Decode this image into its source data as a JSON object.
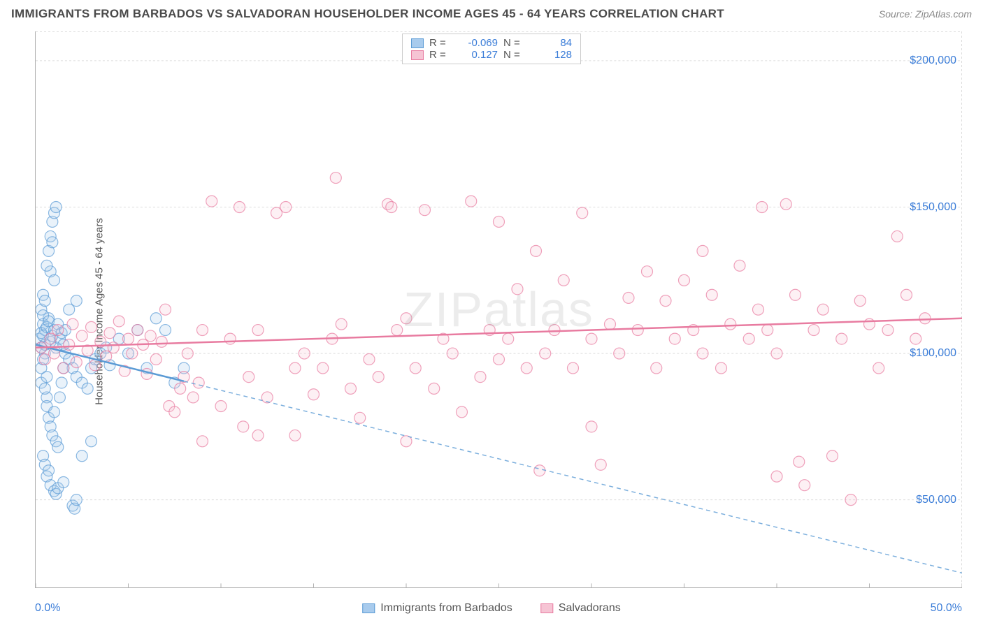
{
  "title": "IMMIGRANTS FROM BARBADOS VS SALVADORAN HOUSEHOLDER INCOME AGES 45 - 64 YEARS CORRELATION CHART",
  "source": "Source: ZipAtlas.com",
  "watermark": "ZIPatlas",
  "ylabel": "Householder Income Ages 45 - 64 years",
  "chart": {
    "type": "scatter",
    "background_color": "#ffffff",
    "grid_color": "#dcdcdc",
    "axis_color": "#b0b0b0",
    "xlim": [
      0,
      50
    ],
    "ylim": [
      20000,
      210000
    ],
    "xticks": [
      0,
      5,
      10,
      15,
      20,
      25,
      30,
      35,
      40,
      45,
      50
    ],
    "xticklabels_shown": {
      "0": "0.0%",
      "50": "50.0%"
    },
    "yticks": [
      50000,
      100000,
      150000,
      200000
    ],
    "yticklabels": [
      "$50,000",
      "$100,000",
      "$150,000",
      "$200,000"
    ],
    "label_fontsize": 15,
    "tick_fontsize": 16,
    "tick_color": "#3b7dd8",
    "marker_radius": 8,
    "marker_fill_opacity": 0.25,
    "marker_stroke_width": 1.2,
    "series": [
      {
        "name": "Immigrants from Barbados",
        "color": "#5b9bd5",
        "fill": "#a8cbed",
        "R": "-0.069",
        "N": "84",
        "trend": {
          "x1": 0,
          "y1": 103000,
          "x2": 50,
          "y2": 25000,
          "solid_until_x": 8,
          "stroke_width": 2.5
        },
        "points": [
          [
            0.2,
            105000
          ],
          [
            0.3,
            95000
          ],
          [
            0.4,
            110000
          ],
          [
            0.3,
            90000
          ],
          [
            0.5,
            100000
          ],
          [
            0.4,
            120000
          ],
          [
            0.6,
            85000
          ],
          [
            0.3,
            115000
          ],
          [
            0.5,
            108000
          ],
          [
            0.4,
            98000
          ],
          [
            0.7,
            112000
          ],
          [
            0.3,
            102000
          ],
          [
            0.5,
            118000
          ],
          [
            0.6,
            92000
          ],
          [
            0.4,
            106000
          ],
          [
            0.8,
            140000
          ],
          [
            0.9,
            145000
          ],
          [
            1.0,
            148000
          ],
          [
            1.1,
            150000
          ],
          [
            0.7,
            135000
          ],
          [
            0.8,
            128000
          ],
          [
            0.6,
            130000
          ],
          [
            0.9,
            138000
          ],
          [
            1.0,
            125000
          ],
          [
            0.5,
            88000
          ],
          [
            0.6,
            82000
          ],
          [
            0.7,
            78000
          ],
          [
            0.8,
            75000
          ],
          [
            0.9,
            72000
          ],
          [
            1.0,
            80000
          ],
          [
            1.1,
            70000
          ],
          [
            1.2,
            68000
          ],
          [
            1.3,
            85000
          ],
          [
            1.4,
            90000
          ],
          [
            1.5,
            95000
          ],
          [
            1.6,
            100000
          ],
          [
            0.4,
            65000
          ],
          [
            0.5,
            62000
          ],
          [
            0.6,
            58000
          ],
          [
            0.7,
            60000
          ],
          [
            0.8,
            55000
          ],
          [
            1.0,
            53000
          ],
          [
            1.1,
            52000
          ],
          [
            1.2,
            54000
          ],
          [
            1.5,
            56000
          ],
          [
            2.0,
            48000
          ],
          [
            2.1,
            47000
          ],
          [
            2.2,
            50000
          ],
          [
            0.3,
            107000
          ],
          [
            0.4,
            113000
          ],
          [
            0.5,
            103000
          ],
          [
            0.6,
            109000
          ],
          [
            0.7,
            111000
          ],
          [
            0.8,
            104000
          ],
          [
            0.9,
            106000
          ],
          [
            1.0,
            108000
          ],
          [
            1.1,
            102000
          ],
          [
            1.2,
            110000
          ],
          [
            1.3,
            105000
          ],
          [
            1.4,
            107000
          ],
          [
            1.5,
            103000
          ],
          [
            1.6,
            108000
          ],
          [
            1.8,
            98000
          ],
          [
            2.0,
            95000
          ],
          [
            2.2,
            92000
          ],
          [
            2.5,
            90000
          ],
          [
            2.8,
            88000
          ],
          [
            3.0,
            95000
          ],
          [
            3.2,
            98000
          ],
          [
            3.5,
            100000
          ],
          [
            3.8,
            102000
          ],
          [
            4.0,
            96000
          ],
          [
            2.5,
            65000
          ],
          [
            4.5,
            105000
          ],
          [
            5.0,
            100000
          ],
          [
            5.5,
            108000
          ],
          [
            6.0,
            95000
          ],
          [
            6.5,
            112000
          ],
          [
            7.0,
            108000
          ],
          [
            7.5,
            90000
          ],
          [
            8.0,
            95000
          ],
          [
            3.0,
            70000
          ],
          [
            1.8,
            115000
          ],
          [
            2.2,
            118000
          ]
        ]
      },
      {
        "name": "Salvadorans",
        "color": "#e87ba0",
        "fill": "#f6c4d4",
        "R": "0.127",
        "N": "128",
        "trend": {
          "x1": 0,
          "y1": 102000,
          "x2": 50,
          "y2": 112000,
          "solid_until_x": 50,
          "stroke_width": 2.5
        },
        "points": [
          [
            0.3,
            102000
          ],
          [
            0.5,
            98000
          ],
          [
            0.8,
            105000
          ],
          [
            1.0,
            100000
          ],
          [
            1.2,
            108000
          ],
          [
            1.5,
            95000
          ],
          [
            1.8,
            103000
          ],
          [
            2.0,
            110000
          ],
          [
            2.2,
            97000
          ],
          [
            2.5,
            106000
          ],
          [
            2.8,
            101000
          ],
          [
            3.0,
            109000
          ],
          [
            3.2,
            96000
          ],
          [
            3.5,
            104000
          ],
          [
            3.8,
            99000
          ],
          [
            4.0,
            107000
          ],
          [
            4.2,
            102000
          ],
          [
            4.5,
            111000
          ],
          [
            4.8,
            94000
          ],
          [
            5.0,
            105000
          ],
          [
            5.2,
            100000
          ],
          [
            5.5,
            108000
          ],
          [
            5.8,
            103000
          ],
          [
            6.0,
            93000
          ],
          [
            6.2,
            106000
          ],
          [
            6.5,
            98000
          ],
          [
            6.8,
            104000
          ],
          [
            7.0,
            115000
          ],
          [
            7.2,
            82000
          ],
          [
            7.5,
            80000
          ],
          [
            7.8,
            88000
          ],
          [
            8.0,
            92000
          ],
          [
            8.2,
            100000
          ],
          [
            8.5,
            85000
          ],
          [
            8.8,
            90000
          ],
          [
            9.0,
            108000
          ],
          [
            9.5,
            152000
          ],
          [
            10.0,
            82000
          ],
          [
            10.5,
            105000
          ],
          [
            11.0,
            150000
          ],
          [
            11.2,
            75000
          ],
          [
            11.5,
            92000
          ],
          [
            12.0,
            108000
          ],
          [
            12.5,
            85000
          ],
          [
            13.0,
            148000
          ],
          [
            13.5,
            150000
          ],
          [
            14.0,
            95000
          ],
          [
            14.5,
            100000
          ],
          [
            15.0,
            86000
          ],
          [
            15.5,
            95000
          ],
          [
            16.0,
            105000
          ],
          [
            16.2,
            160000
          ],
          [
            16.5,
            110000
          ],
          [
            17.0,
            88000
          ],
          [
            17.5,
            78000
          ],
          [
            18.0,
            98000
          ],
          [
            18.5,
            92000
          ],
          [
            19.0,
            151000
          ],
          [
            19.2,
            150000
          ],
          [
            19.5,
            108000
          ],
          [
            20.0,
            112000
          ],
          [
            20.5,
            95000
          ],
          [
            21.0,
            149000
          ],
          [
            21.5,
            88000
          ],
          [
            22.0,
            105000
          ],
          [
            22.5,
            100000
          ],
          [
            23.0,
            80000
          ],
          [
            23.5,
            152000
          ],
          [
            24.0,
            92000
          ],
          [
            24.5,
            108000
          ],
          [
            25.0,
            98000
          ],
          [
            25.5,
            105000
          ],
          [
            26.0,
            122000
          ],
          [
            26.5,
            95000
          ],
          [
            27.0,
            135000
          ],
          [
            27.2,
            60000
          ],
          [
            27.5,
            100000
          ],
          [
            28.0,
            108000
          ],
          [
            28.5,
            125000
          ],
          [
            29.0,
            95000
          ],
          [
            29.5,
            148000
          ],
          [
            30.0,
            105000
          ],
          [
            30.5,
            62000
          ],
          [
            31.0,
            110000
          ],
          [
            31.5,
            100000
          ],
          [
            32.0,
            119000
          ],
          [
            32.5,
            108000
          ],
          [
            33.0,
            128000
          ],
          [
            33.5,
            95000
          ],
          [
            34.0,
            118000
          ],
          [
            34.5,
            105000
          ],
          [
            35.0,
            125000
          ],
          [
            35.5,
            108000
          ],
          [
            36.0,
            100000
          ],
          [
            36.5,
            120000
          ],
          [
            37.0,
            95000
          ],
          [
            37.5,
            110000
          ],
          [
            38.0,
            130000
          ],
          [
            38.5,
            105000
          ],
          [
            39.0,
            115000
          ],
          [
            39.2,
            150000
          ],
          [
            39.5,
            108000
          ],
          [
            40.0,
            100000
          ],
          [
            40.5,
            151000
          ],
          [
            41.0,
            120000
          ],
          [
            41.2,
            63000
          ],
          [
            41.5,
            55000
          ],
          [
            42.0,
            108000
          ],
          [
            42.5,
            115000
          ],
          [
            43.0,
            65000
          ],
          [
            43.5,
            105000
          ],
          [
            44.0,
            50000
          ],
          [
            44.5,
            118000
          ],
          [
            45.0,
            110000
          ],
          [
            45.5,
            95000
          ],
          [
            46.0,
            108000
          ],
          [
            46.5,
            140000
          ],
          [
            47.0,
            120000
          ],
          [
            47.5,
            105000
          ],
          [
            48.0,
            112000
          ],
          [
            40.0,
            58000
          ],
          [
            36.0,
            135000
          ],
          [
            30.0,
            75000
          ],
          [
            25.0,
            145000
          ],
          [
            20.0,
            70000
          ],
          [
            14.0,
            72000
          ],
          [
            9.0,
            70000
          ],
          [
            12.0,
            72000
          ]
        ]
      }
    ]
  },
  "legend_bottom": [
    "Immigrants from Barbados",
    "Salvadorans"
  ]
}
